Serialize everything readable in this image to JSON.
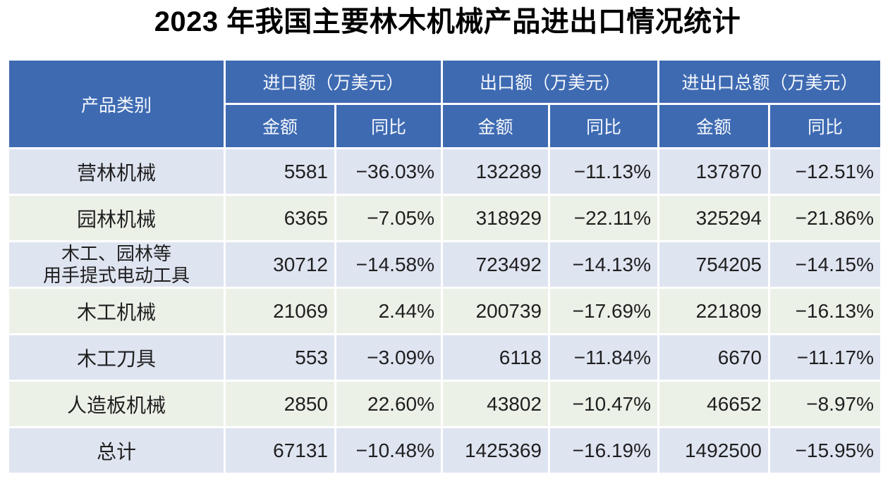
{
  "page": {
    "title": "2023 年我国主要林木机械产品进出口情况统计"
  },
  "table": {
    "product_header": "产品类别",
    "col_groups": [
      {
        "label": "进口额（万美元）"
      },
      {
        "label": "出口额（万美元）"
      },
      {
        "label": "进出口总额（万美元）"
      }
    ],
    "subheader": {
      "amount": "金额",
      "yoy": "同比"
    },
    "rows": [
      {
        "product": "营林机械",
        "import_amount": "5581",
        "import_yoy": "−36.03%",
        "export_amount": "132289",
        "export_yoy": "−11.13%",
        "total_amount": "137870",
        "total_yoy": "−12.51%"
      },
      {
        "product": "园林机械",
        "import_amount": "6365",
        "import_yoy": "−7.05%",
        "export_amount": "318929",
        "export_yoy": "−22.11%",
        "total_amount": "325294",
        "total_yoy": "−21.86%"
      },
      {
        "product": "木工、园林等\n用手提式电动工具",
        "import_amount": "30712",
        "import_yoy": "−14.58%",
        "export_amount": "723492",
        "export_yoy": "−14.13%",
        "total_amount": "754205",
        "total_yoy": "−14.15%"
      },
      {
        "product": "木工机械",
        "import_amount": "21069",
        "import_yoy": "2.44%",
        "export_amount": "200739",
        "export_yoy": "−17.69%",
        "total_amount": "221809",
        "total_yoy": "−16.13%"
      },
      {
        "product": "木工刀具",
        "import_amount": "553",
        "import_yoy": "−3.09%",
        "export_amount": "6118",
        "export_yoy": "−11.84%",
        "total_amount": "6670",
        "total_yoy": "−11.17%"
      },
      {
        "product": "人造板机械",
        "import_amount": "2850",
        "import_yoy": "22.60%",
        "export_amount": "43802",
        "export_yoy": "−10.47%",
        "total_amount": "46652",
        "total_yoy": "−8.97%"
      },
      {
        "product": "总计",
        "import_amount": "67131",
        "import_yoy": "−10.48%",
        "export_amount": "1425369",
        "export_yoy": "−16.19%",
        "total_amount": "1492500",
        "total_yoy": "−15.95%"
      }
    ]
  },
  "colors": {
    "header_bg": "#3E6AB2",
    "header_text": "#F5F8FC",
    "row_blue_bg": "#DFE4F1",
    "row_green_bg": "#ECF1E8",
    "data_text": "#1F1F1F",
    "title_text": "#000000",
    "gap": "#FFFFFF"
  },
  "chart_data": {
    "type": "table",
    "title": "2023 年我国主要林木机械产品进出口情况统计",
    "unit": "万美元",
    "columns": [
      "产品类别",
      "进口额-金额",
      "进口额-同比",
      "出口额-金额",
      "出口额-同比",
      "进出口总额-金额",
      "进出口总额-同比"
    ],
    "rows": [
      [
        "营林机械",
        5581,
        "−36.03%",
        132289,
        "−11.13%",
        137870,
        "−12.51%"
      ],
      [
        "园林机械",
        6365,
        "−7.05%",
        318929,
        "−22.11%",
        325294,
        "−21.86%"
      ],
      [
        "木工、园林等用手提式电动工具",
        30712,
        "−14.58%",
        723492,
        "−14.13%",
        754205,
        "−14.15%"
      ],
      [
        "木工机械",
        21069,
        "2.44%",
        200739,
        "−17.69%",
        221809,
        "−16.13%"
      ],
      [
        "木工刀具",
        553,
        "−3.09%",
        6118,
        "−11.84%",
        6670,
        "−11.17%"
      ],
      [
        "人造板机械",
        2850,
        "22.60%",
        43802,
        "−10.47%",
        46652,
        "−8.97%"
      ],
      [
        "总计",
        67131,
        "−10.48%",
        1425369,
        "−16.19%",
        1492500,
        "−15.95%"
      ]
    ]
  }
}
